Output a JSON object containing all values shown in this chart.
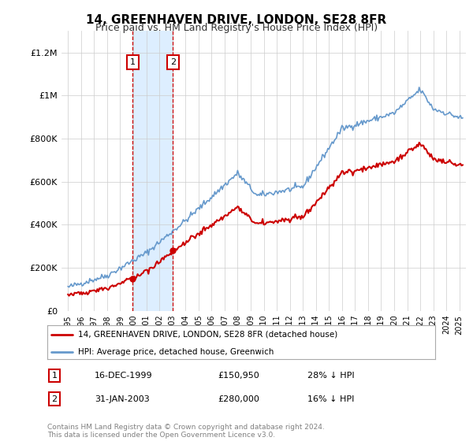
{
  "title": "14, GREENHAVEN DRIVE, LONDON, SE28 8FR",
  "subtitle": "Price paid vs. HM Land Registry's House Price Index (HPI)",
  "ylabel_ticks": [
    "£0",
    "£200K",
    "£400K",
    "£600K",
    "£800K",
    "£1M",
    "£1.2M"
  ],
  "ytick_vals": [
    0,
    200000,
    400000,
    600000,
    800000,
    1000000,
    1200000
  ],
  "ylim": [
    0,
    1300000
  ],
  "sale1_date": "16-DEC-1999",
  "sale1_price": 150950,
  "sale2_date": "31-JAN-2003",
  "sale2_price": 280000,
  "red_color": "#cc0000",
  "blue_color": "#6699cc",
  "shade_color": "#ddeeff",
  "legend_label_red": "14, GREENHAVEN DRIVE, LONDON, SE28 8FR (detached house)",
  "legend_label_blue": "HPI: Average price, detached house, Greenwich",
  "footer": "Contains HM Land Registry data © Crown copyright and database right 2024.\nThis data is licensed under the Open Government Licence v3.0.",
  "sale1_pct": "28% ↓ HPI",
  "sale2_pct": "16% ↓ HPI"
}
